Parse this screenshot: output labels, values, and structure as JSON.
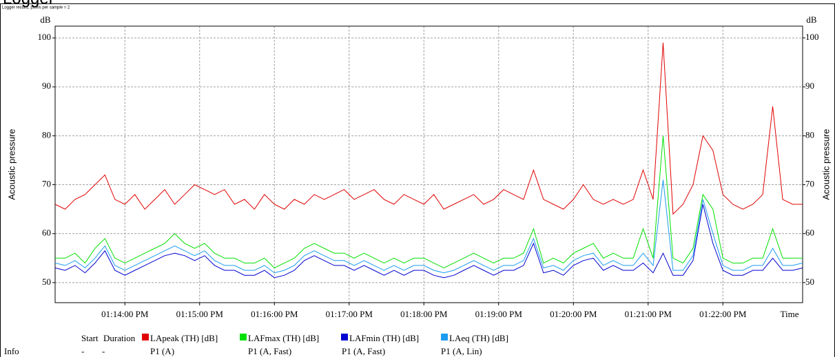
{
  "chart_data": {
    "type": "line",
    "title": "Logger",
    "subtitle": "Logger results, pixels per sample = 2",
    "y_label": "Acoustic pressure",
    "y_unit": "dB",
    "x_label": "Time",
    "ylim": [
      45.9,
      102.4
    ],
    "yticks": [
      50,
      60,
      70,
      80,
      90,
      100
    ],
    "xlim": [
      "01:13:04 PM",
      "01:23:04 PM"
    ],
    "xticks": [
      "01:14:00 PM",
      "01:15:00 PM",
      "01:16:00 PM",
      "01:17:00 PM",
      "01:18:00 PM",
      "01:19:00 PM",
      "01:20:00 PM",
      "01:21:00 PM",
      "01:22:00 PM"
    ],
    "grid": true,
    "x": [
      "01:13:04 PM",
      "01:13:12 PM",
      "01:13:20 PM",
      "01:13:28 PM",
      "01:13:36 PM",
      "01:13:44 PM",
      "01:13:52 PM",
      "01:14:00 PM",
      "01:14:08 PM",
      "01:14:16 PM",
      "01:14:24 PM",
      "01:14:32 PM",
      "01:14:40 PM",
      "01:14:48 PM",
      "01:14:56 PM",
      "01:15:04 PM",
      "01:15:12 PM",
      "01:15:20 PM",
      "01:15:28 PM",
      "01:15:36 PM",
      "01:15:44 PM",
      "01:15:52 PM",
      "01:16:00 PM",
      "01:16:08 PM",
      "01:16:16 PM",
      "01:16:24 PM",
      "01:16:32 PM",
      "01:16:40 PM",
      "01:16:48 PM",
      "01:16:56 PM",
      "01:17:04 PM",
      "01:17:12 PM",
      "01:17:20 PM",
      "01:17:28 PM",
      "01:17:36 PM",
      "01:17:44 PM",
      "01:17:52 PM",
      "01:18:00 PM",
      "01:18:08 PM",
      "01:18:16 PM",
      "01:18:24 PM",
      "01:18:32 PM",
      "01:18:40 PM",
      "01:18:48 PM",
      "01:18:56 PM",
      "01:19:04 PM",
      "01:19:12 PM",
      "01:19:20 PM",
      "01:19:28 PM",
      "01:19:36 PM",
      "01:19:44 PM",
      "01:19:52 PM",
      "01:20:00 PM",
      "01:20:08 PM",
      "01:20:16 PM",
      "01:20:24 PM",
      "01:20:32 PM",
      "01:20:40 PM",
      "01:20:48 PM",
      "01:20:56 PM",
      "01:21:04 PM",
      "01:21:12 PM",
      "01:21:20 PM",
      "01:21:28 PM",
      "01:21:36 PM",
      "01:21:44 PM",
      "01:21:52 PM",
      "01:22:00 PM",
      "01:22:08 PM",
      "01:22:16 PM",
      "01:22:24 PM",
      "01:22:32 PM",
      "01:22:40 PM",
      "01:22:48 PM",
      "01:22:56 PM",
      "01:23:04 PM"
    ],
    "series": [
      {
        "name": "LApeak (TH) [dB]",
        "color": "#e00000",
        "values": [
          66,
          65,
          67,
          68,
          70,
          72,
          67,
          66,
          68,
          65,
          67,
          69,
          66,
          68,
          70,
          69,
          68,
          69,
          66,
          67,
          65,
          68,
          66,
          65,
          67,
          66,
          68,
          67,
          68,
          69,
          67,
          68,
          69,
          67,
          66,
          68,
          67,
          66,
          68,
          65,
          66,
          67,
          68,
          66,
          67,
          69,
          68,
          67,
          73,
          67,
          66,
          65,
          67,
          70,
          67,
          66,
          67,
          66,
          67,
          73,
          67,
          99,
          64,
          66,
          70,
          80,
          77,
          68,
          66,
          65,
          66,
          68,
          86,
          67,
          66,
          66
        ]
      },
      {
        "name": "LAFmax (TH) [dB]",
        "color": "#00e000",
        "values": [
          55,
          55,
          56,
          54,
          57,
          59,
          55,
          54,
          55,
          56,
          57,
          58,
          60,
          58,
          57,
          58,
          56,
          55,
          55,
          54,
          54,
          55,
          53,
          54,
          55,
          57,
          58,
          57,
          56,
          56,
          55,
          56,
          55,
          54,
          55,
          54,
          55,
          55,
          54,
          53,
          54,
          55,
          56,
          55,
          54,
          55,
          55,
          56,
          61,
          54,
          55,
          54,
          56,
          57,
          58,
          55,
          56,
          55,
          55,
          61,
          55,
          80,
          55,
          54,
          57,
          68,
          65,
          55,
          54,
          54,
          55,
          55,
          61,
          55,
          55,
          55
        ]
      },
      {
        "name": "LAFmin (TH) [dB]",
        "color": "#0000d0",
        "values": [
          53,
          52.5,
          53.5,
          52,
          54,
          56.5,
          52.5,
          51.5,
          52.5,
          53.5,
          54.5,
          55.5,
          56,
          55.5,
          54.5,
          55.5,
          53.5,
          52.5,
          52.5,
          51.5,
          51.5,
          52.5,
          51,
          51.5,
          52.5,
          54.5,
          55.5,
          54.5,
          53.5,
          53.5,
          52.5,
          53.5,
          52.5,
          51.5,
          52.5,
          51.5,
          52.5,
          52.5,
          51.5,
          51,
          51.5,
          52.5,
          53.5,
          52.5,
          51.5,
          52.5,
          52.5,
          53.5,
          58,
          52,
          52.5,
          51.5,
          53.5,
          54.5,
          55,
          52.5,
          53.5,
          52.5,
          52.5,
          54,
          52,
          56,
          51.5,
          51.5,
          54.5,
          66,
          58,
          52.5,
          51.5,
          51.5,
          52.5,
          52.5,
          55,
          52.5,
          52.5,
          53
        ]
      },
      {
        "name": "LAeq (TH) [dB]",
        "color": "#1a9cf0",
        "values": [
          54,
          53.5,
          54.5,
          53,
          55,
          57.5,
          53.5,
          52.5,
          53.5,
          54.5,
          55.5,
          56.5,
          57.5,
          56.5,
          55.5,
          56.5,
          54.5,
          53.5,
          53.5,
          52.5,
          52.5,
          53.5,
          52,
          52.5,
          53.5,
          55.5,
          56.5,
          55.5,
          54.5,
          54.5,
          53.5,
          54.5,
          53.5,
          52.5,
          53.5,
          52.5,
          53.5,
          53.5,
          52.5,
          52,
          52.5,
          53.5,
          54.5,
          53.5,
          52.5,
          53.5,
          53.5,
          54.5,
          59,
          53,
          53.5,
          52.5,
          54.5,
          55.5,
          56,
          53.5,
          54.5,
          53.5,
          53.5,
          56,
          53.5,
          71,
          52.5,
          52.5,
          55.5,
          67,
          60,
          53.5,
          52.5,
          52.5,
          53.5,
          53.5,
          57,
          53.5,
          53.5,
          54
        ]
      }
    ],
    "legend_table": {
      "columns": [
        "Start",
        "Duration"
      ],
      "info_label": "Info",
      "info": [
        "-",
        "-",
        "P1 (A)",
        "P1 (A, Fast)",
        "P1 (A, Fast)",
        "P1 (A, Lin)"
      ]
    }
  }
}
